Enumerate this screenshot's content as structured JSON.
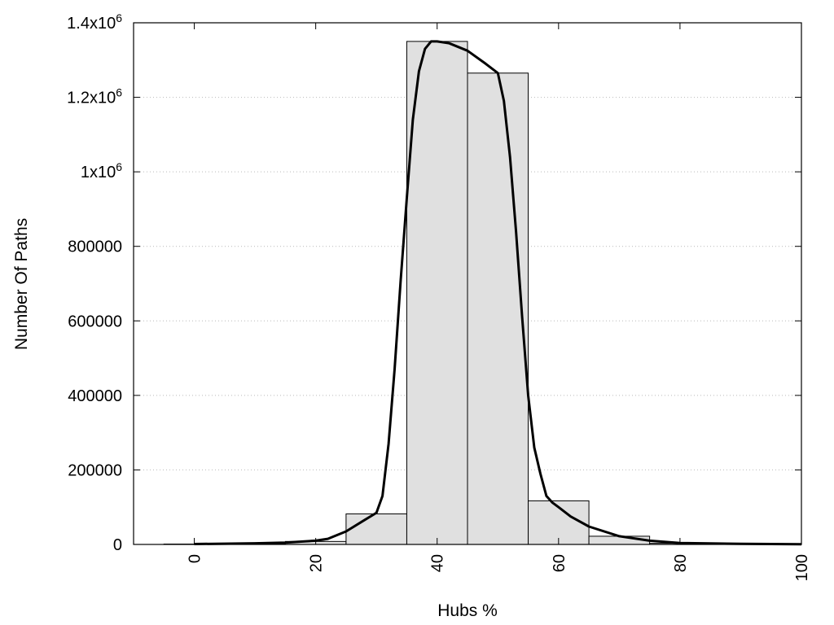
{
  "chart_data": {
    "type": "bar",
    "xlabel": "Hubs %",
    "ylabel": "Number Of Paths",
    "xlim": [
      -10,
      100
    ],
    "ylim": [
      0,
      1400000
    ],
    "grid": true,
    "colors": {
      "bar_fill": "#e0e0e0",
      "bar_stroke": "#000000",
      "curve": "#000000"
    },
    "x_ticks": [
      {
        "value": 0,
        "label": "0"
      },
      {
        "value": 20,
        "label": "20"
      },
      {
        "value": 40,
        "label": "40"
      },
      {
        "value": 60,
        "label": "60"
      },
      {
        "value": 80,
        "label": "80"
      },
      {
        "value": 100,
        "label": "100"
      }
    ],
    "y_ticks": [
      {
        "value": 0,
        "base": "0",
        "exp": ""
      },
      {
        "value": 200000,
        "base": "200000",
        "exp": ""
      },
      {
        "value": 400000,
        "base": "400000",
        "exp": ""
      },
      {
        "value": 600000,
        "base": "600000",
        "exp": ""
      },
      {
        "value": 800000,
        "base": "800000",
        "exp": ""
      },
      {
        "value": 1000000,
        "base": "1x10",
        "exp": "6"
      },
      {
        "value": 1200000,
        "base": "1.2x10",
        "exp": "6"
      },
      {
        "value": 1400000,
        "base": "1.4x10",
        "exp": "6"
      }
    ],
    "bars": [
      {
        "x": 0,
        "width": 10,
        "value": 1000
      },
      {
        "x": 10,
        "width": 10,
        "value": 2000
      },
      {
        "x": 20,
        "width": 10,
        "value": 8000
      },
      {
        "x": 30,
        "width": 10,
        "value": 82000
      },
      {
        "x": 40,
        "width": 10,
        "value": 1350000
      },
      {
        "x": 50,
        "width": 10,
        "value": 1265000
      },
      {
        "x": 60,
        "width": 10,
        "value": 117000
      },
      {
        "x": 70,
        "width": 10,
        "value": 22000
      },
      {
        "x": 80,
        "width": 10,
        "value": 3000
      },
      {
        "x": 90,
        "width": 10,
        "value": 1000
      }
    ],
    "curve": {
      "x": [
        0,
        10,
        15,
        20,
        22,
        25,
        28,
        30,
        31,
        32,
        33,
        34,
        35,
        36,
        37,
        38,
        39,
        40,
        42,
        45,
        48,
        50,
        51,
        52,
        53,
        54,
        55,
        56,
        57,
        58,
        59,
        60,
        62,
        65,
        70,
        75,
        80,
        90,
        100
      ],
      "y": [
        1000,
        3000,
        5000,
        10000,
        15000,
        35000,
        65000,
        85000,
        130000,
        270000,
        470000,
        710000,
        930000,
        1140000,
        1270000,
        1330000,
        1350000,
        1350000,
        1345000,
        1325000,
        1290000,
        1265000,
        1190000,
        1040000,
        840000,
        610000,
        400000,
        260000,
        190000,
        130000,
        112000,
        100000,
        75000,
        48000,
        22000,
        10000,
        4000,
        1500,
        500
      ]
    }
  }
}
